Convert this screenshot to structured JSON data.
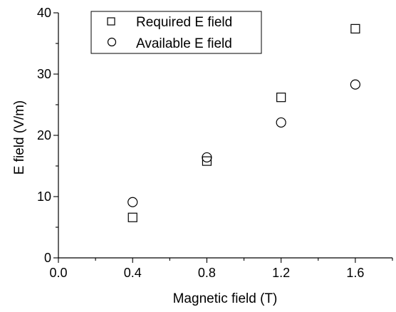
{
  "chart_data": {
    "type": "scatter",
    "xlabel": "Magnetic field (T)",
    "ylabel": "E field (V/m)",
    "xlim": [
      0.0,
      1.8
    ],
    "ylim": [
      0,
      40
    ],
    "x_ticks": [
      0.0,
      0.4,
      0.8,
      1.2,
      1.6
    ],
    "x_tick_labels": [
      "0.0",
      "0.4",
      "0.8",
      "1.2",
      "1.6"
    ],
    "y_ticks": [
      0,
      10,
      20,
      30,
      40
    ],
    "y_tick_labels": [
      "0",
      "10",
      "20",
      "30",
      "40"
    ],
    "grid": false,
    "legend_position": "top-left",
    "series": [
      {
        "name": "Required E field",
        "marker": "square",
        "x": [
          0.4,
          0.8,
          1.2,
          1.6
        ],
        "y": [
          6.6,
          15.8,
          26.2,
          37.4
        ]
      },
      {
        "name": "Available E field",
        "marker": "circle",
        "x": [
          0.4,
          0.8,
          1.2,
          1.6
        ],
        "y": [
          9.1,
          16.4,
          22.1,
          28.3
        ]
      }
    ]
  }
}
